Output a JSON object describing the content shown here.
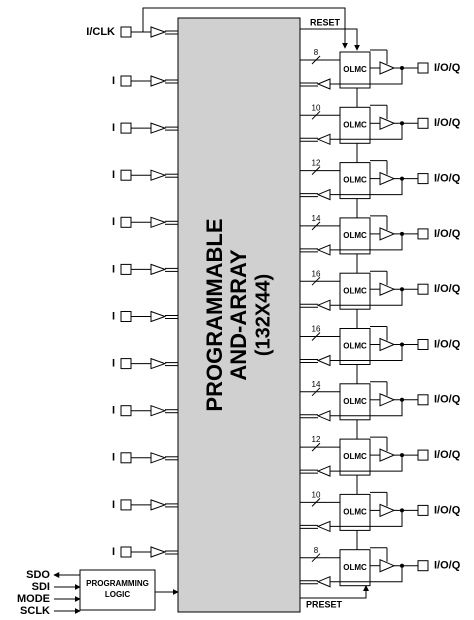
{
  "inputs": [
    "I/CLK",
    "I",
    "I",
    "I",
    "I",
    "I",
    "I",
    "I",
    "I",
    "I",
    "I",
    "I"
  ],
  "array": {
    "lines": [
      "PROGRAMMABLE",
      "AND-ARRAY",
      "(132X44)"
    ]
  },
  "reset": "RESET",
  "preset": "PRESET",
  "olmcs": [
    {
      "label": "OLMC",
      "terms": 8,
      "pin": "I/O/Q"
    },
    {
      "label": "OLMC",
      "terms": 10,
      "pin": "I/O/Q"
    },
    {
      "label": "OLMC",
      "terms": 12,
      "pin": "I/O/Q"
    },
    {
      "label": "OLMC",
      "terms": 14,
      "pin": "I/O/Q"
    },
    {
      "label": "OLMC",
      "terms": 16,
      "pin": "I/O/Q"
    },
    {
      "label": "OLMC",
      "terms": 16,
      "pin": "I/O/Q"
    },
    {
      "label": "OLMC",
      "terms": 14,
      "pin": "I/O/Q"
    },
    {
      "label": "OLMC",
      "terms": 12,
      "pin": "I/O/Q"
    },
    {
      "label": "OLMC",
      "terms": 10,
      "pin": "I/O/Q"
    },
    {
      "label": "OLMC",
      "terms": 8,
      "pin": "I/O/Q"
    }
  ],
  "programming": {
    "signals": [
      "SDO",
      "SDI",
      "MODE",
      "SCLK"
    ],
    "block": [
      "PROGRAMMING",
      "LOGIC"
    ]
  }
}
